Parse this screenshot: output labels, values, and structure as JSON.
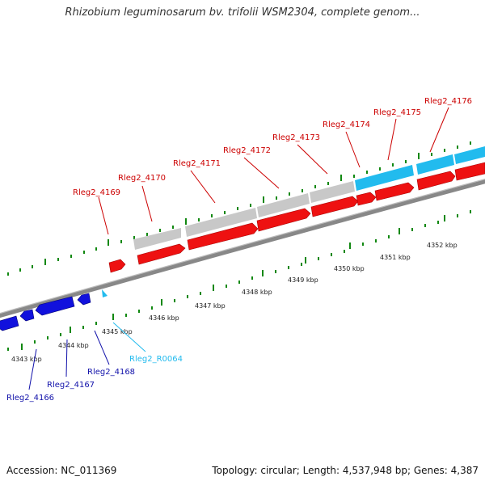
{
  "title": "Rhizobium leguminosarum bv. trifolii WSM2304, complete genom...",
  "footer": {
    "accession": "Accession: NC_011369",
    "topology": "Topology: circular; Length: 4,537,948 bp; Genes: 4,387"
  },
  "colors": {
    "cds_forward": "#ee1111",
    "cds_reverse": "#1111dd",
    "rna": "#22bbee",
    "annotation_gray": "#c8c8c8",
    "annotation_blue": "#22bbee",
    "tick": "#118811",
    "backbone": "#888888"
  },
  "scale_labels": [
    "4343 kbp",
    "4344 kbp",
    "4345 kbp",
    "4346 kbp",
    "4347 kbp",
    "4348 kbp",
    "4349 kbp",
    "4350 kbp",
    "4351 kbp",
    "4352 kbp"
  ],
  "upper_labels": [
    "Rleg2_4169",
    "Rleg2_4170",
    "Rleg2_4171",
    "Rleg2_4172",
    "Rleg2_4173",
    "Rleg2_4174",
    "Rleg2_4175",
    "Rleg2_4176"
  ],
  "lower_labels": [
    {
      "text": "Rleg2_4166",
      "color": "#1111aa"
    },
    {
      "text": "Rleg2_4167",
      "color": "#1111aa"
    },
    {
      "text": "Rleg2_4168",
      "color": "#1111aa"
    },
    {
      "text": "Rleg2_R0064",
      "color": "#22bbee"
    }
  ]
}
